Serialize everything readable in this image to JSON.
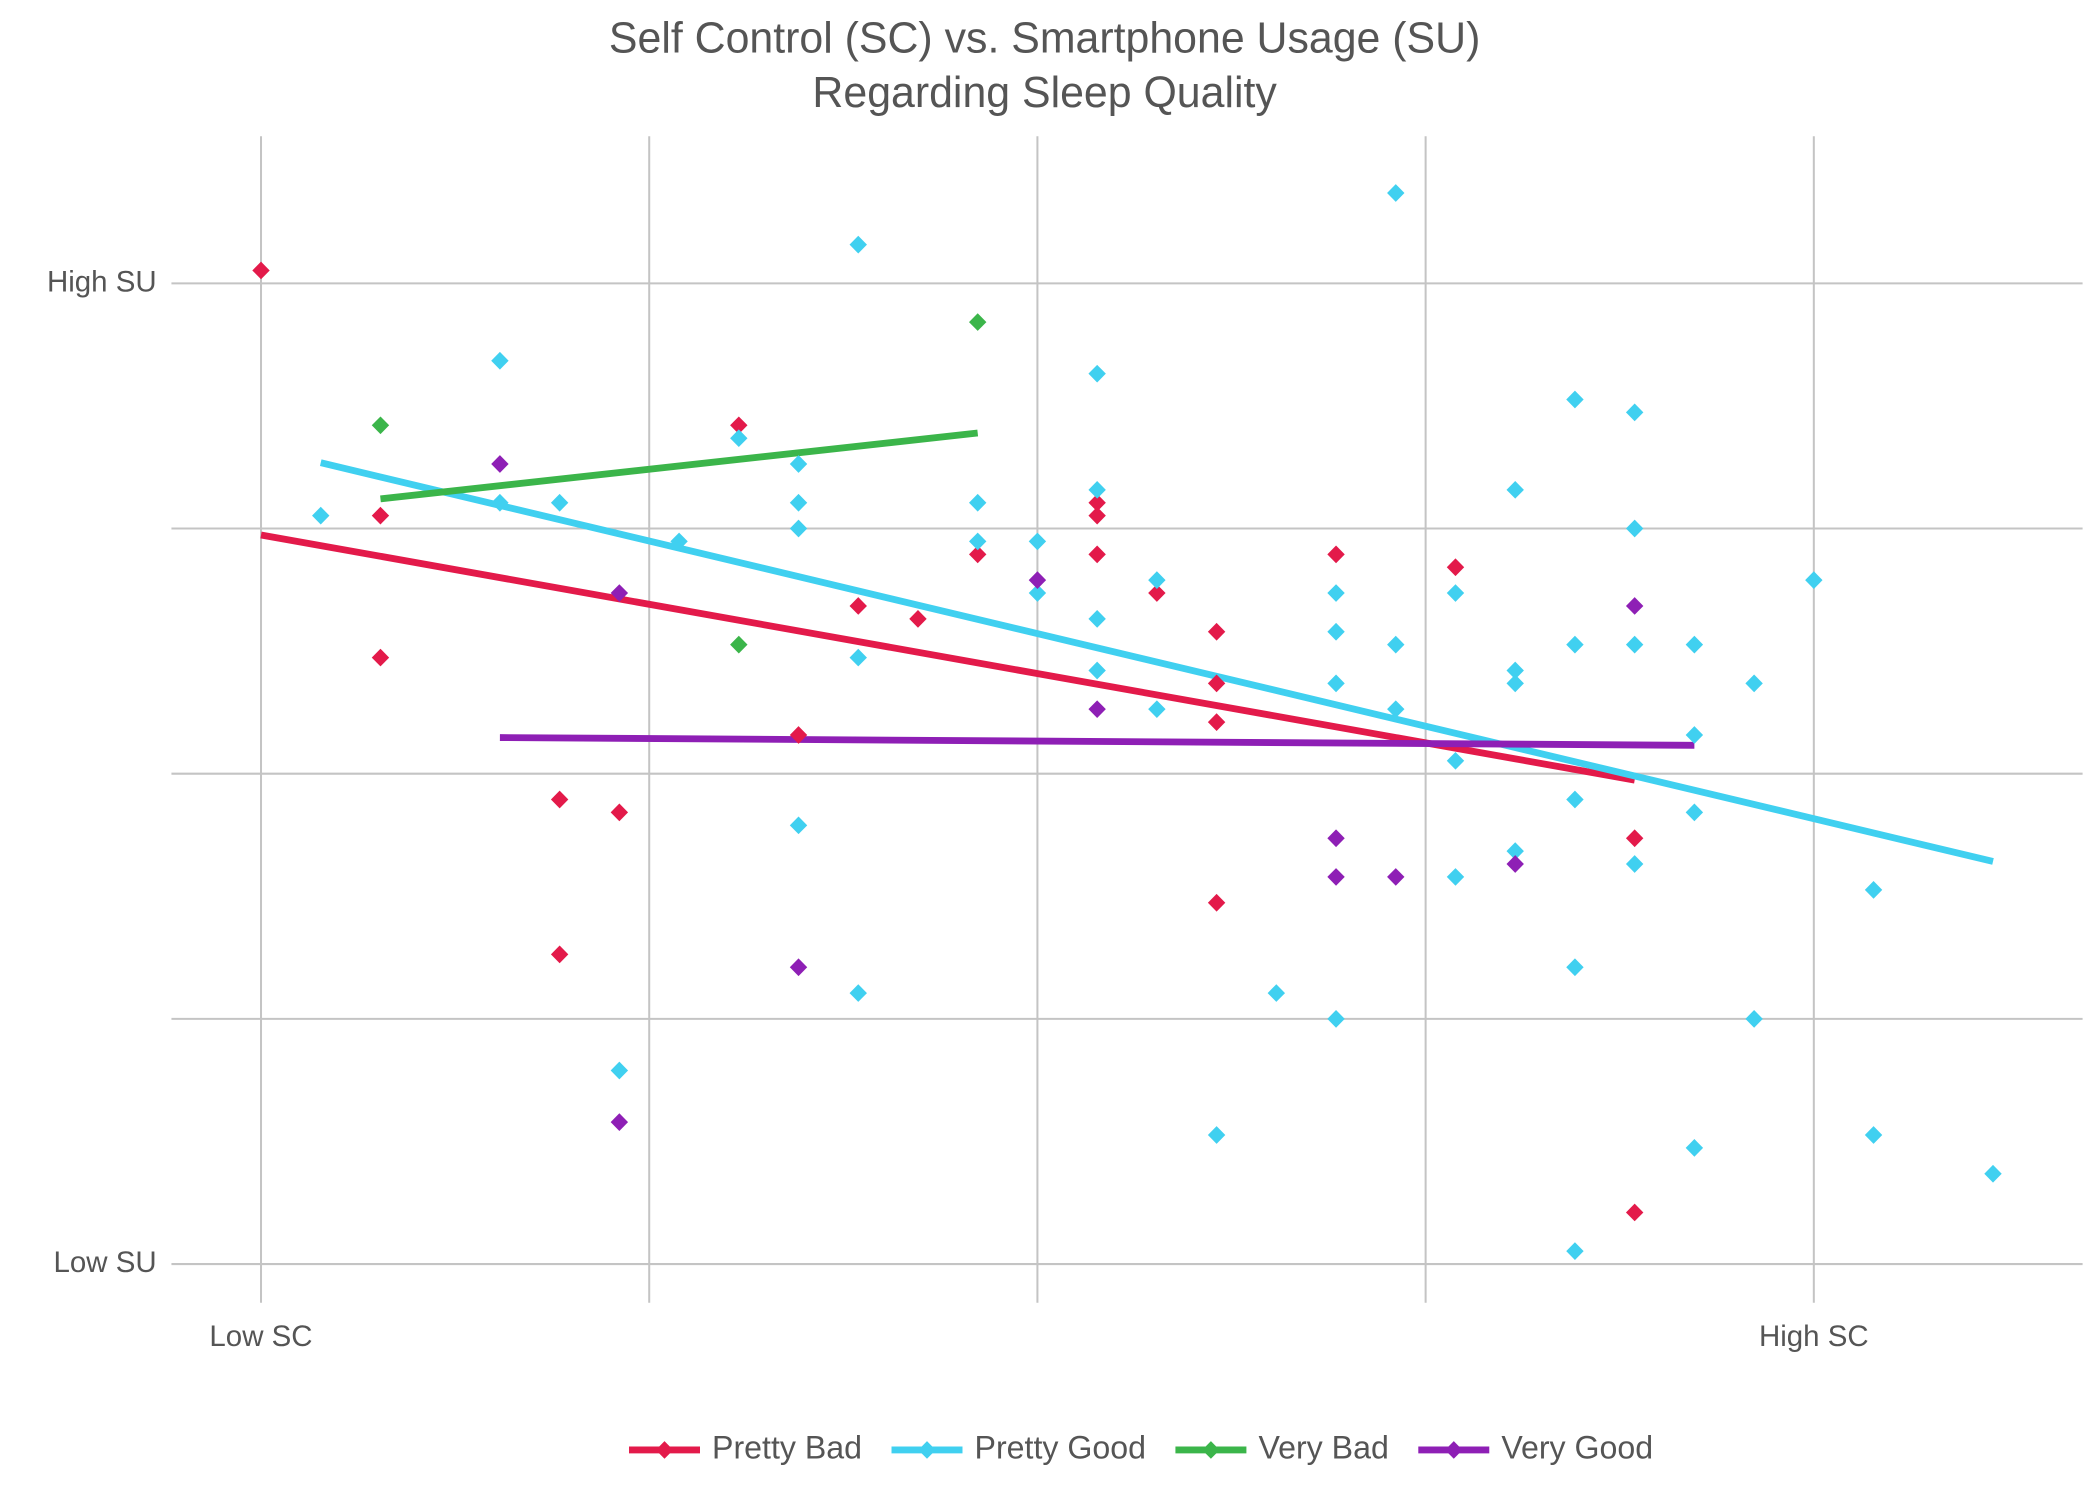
{
  "chart_data": {
    "type": "scatter",
    "title": "Self Control (SC) vs. Smartphone Usage (SU)",
    "subtitle": "Regarding Sleep Quality",
    "xlim": [
      -1.5,
      30.5
    ],
    "xticks": [
      {
        "value": 0,
        "label": "Low SC"
      },
      {
        "value": 6.5,
        "label": null
      },
      {
        "value": 13,
        "label": null
      },
      {
        "value": 19.5,
        "label": null
      },
      {
        "value": 26,
        "label": "High SC"
      }
    ],
    "ylim": [
      -3,
      88
    ],
    "yticks": [
      {
        "value": 0,
        "label": "Low SU"
      },
      {
        "value": 19,
        "label": null
      },
      {
        "value": 38,
        "label": null
      },
      {
        "value": 57,
        "label": null
      },
      {
        "value": 76,
        "label": "High SU"
      }
    ],
    "grid": true,
    "legend": "bottom",
    "series": [
      {
        "name": "Pretty Bad",
        "color": "#e31a4a",
        "x": [
          0,
          2,
          2,
          5,
          5,
          6,
          8,
          9,
          10,
          11,
          12,
          14,
          14,
          14,
          15,
          16,
          16,
          16,
          16,
          18,
          20,
          23,
          23
        ],
        "values": [
          77,
          58,
          47,
          36,
          24,
          35,
          65,
          41,
          51,
          50,
          55,
          59,
          58,
          55,
          52,
          49,
          45,
          42,
          28,
          55,
          54,
          33,
          4
        ],
        "fit": {
          "x": [
            0,
            23
          ],
          "y": [
            56.5,
            37.5
          ]
        }
      },
      {
        "name": "Pretty Good",
        "color": "#40d0f0",
        "x": [
          1,
          4,
          4,
          5,
          6,
          7,
          8,
          9,
          9,
          9,
          9,
          10,
          10,
          10,
          12,
          12,
          13,
          13,
          14,
          14,
          14,
          14,
          15,
          15,
          16,
          17,
          18,
          18,
          18,
          18,
          19,
          19,
          19,
          20,
          20,
          20,
          21,
          21,
          21,
          21,
          22,
          22,
          22,
          22,
          22,
          23,
          23,
          23,
          23,
          24,
          24,
          24,
          24,
          25,
          25,
          26,
          27,
          27,
          29
        ],
        "values": [
          58,
          70,
          59,
          59,
          15,
          56,
          64,
          62,
          59,
          57,
          34,
          79,
          47,
          21,
          59,
          56,
          56,
          52,
          69,
          60,
          50,
          46,
          53,
          43,
          10,
          21,
          52,
          49,
          45,
          19,
          83,
          48,
          43,
          52,
          39,
          30,
          60,
          46,
          45,
          32,
          67,
          48,
          36,
          23,
          1,
          66,
          57,
          48,
          31,
          48,
          41,
          35,
          9,
          45,
          19,
          53,
          29,
          10,
          7
        ],
        "fit": {
          "x": [
            1,
            29
          ],
          "y": [
            62.1,
            31.2
          ]
        }
      },
      {
        "name": "Very Bad",
        "color": "#3bb54a",
        "x": [
          2,
          8,
          12
        ],
        "values": [
          65,
          48,
          73
        ],
        "fit": {
          "x": [
            2,
            12
          ],
          "y": [
            59.3,
            64.4
          ]
        }
      },
      {
        "name": "Very Good",
        "color": "#8e1fb5",
        "x": [
          4,
          6,
          6,
          9,
          13,
          14,
          18,
          18,
          19,
          21,
          23
        ],
        "values": [
          62,
          52,
          11,
          23,
          53,
          43,
          33,
          30,
          30,
          31,
          51
        ],
        "fit": {
          "x": [
            4,
            24
          ],
          "y": [
            40.8,
            40.2
          ]
        }
      }
    ]
  }
}
